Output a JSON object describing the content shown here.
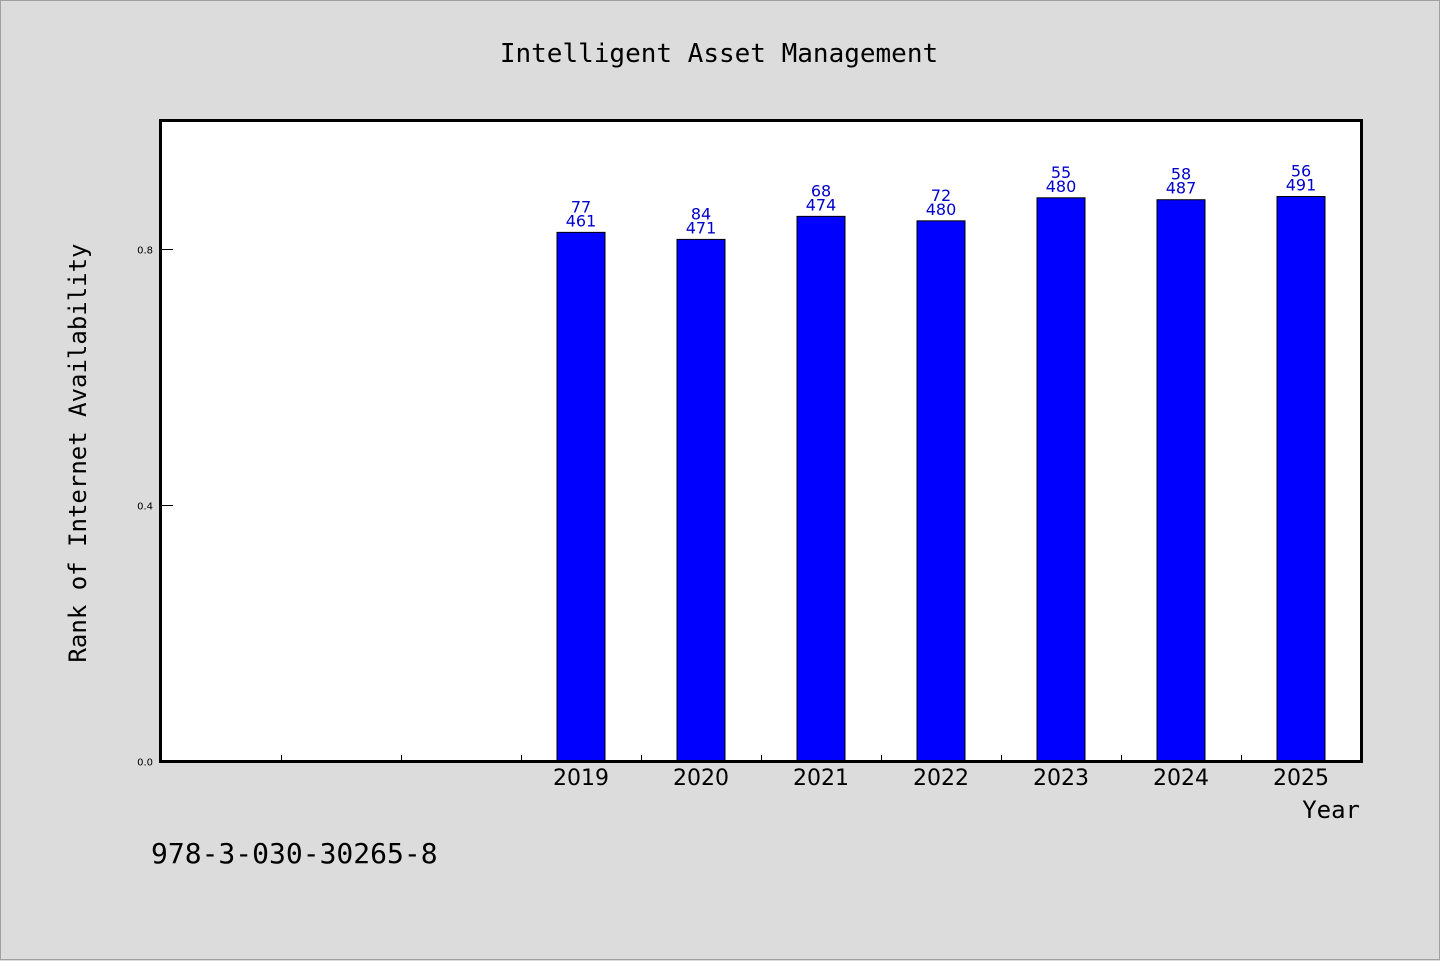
{
  "chart_data": {
    "type": "bar",
    "title": "Intelligent Asset Management",
    "xlabel": "Year",
    "ylabel": "Rank of Internet Availability",
    "footer_id": "978-3-030-30265-8",
    "categories": [
      "",
      "",
      "",
      "2019",
      "2020",
      "2021",
      "2022",
      "2023",
      "2024",
      "2025"
    ],
    "values": [
      null,
      null,
      null,
      0.826,
      0.815,
      0.851,
      0.844,
      0.88,
      0.877,
      0.882
    ],
    "annotations": [
      null,
      null,
      null,
      [
        "77",
        "461"
      ],
      [
        "84",
        "471"
      ],
      [
        "68",
        "474"
      ],
      [
        "72",
        "480"
      ],
      [
        "55",
        "480"
      ],
      [
        "58",
        "487"
      ],
      [
        "56",
        "491"
      ]
    ],
    "ylim": [
      0,
      1.0
    ],
    "yticks": [
      "0.0",
      "0.4",
      "0.8"
    ],
    "ytick_values": [
      0.0,
      0.4,
      0.8
    ],
    "grid": false,
    "colors": {
      "bar": "#0000ff",
      "annotation": "#0000cc",
      "axes": "#000000",
      "plot_bg": "#ffffff",
      "page_bg": "#dcdcdc"
    }
  }
}
